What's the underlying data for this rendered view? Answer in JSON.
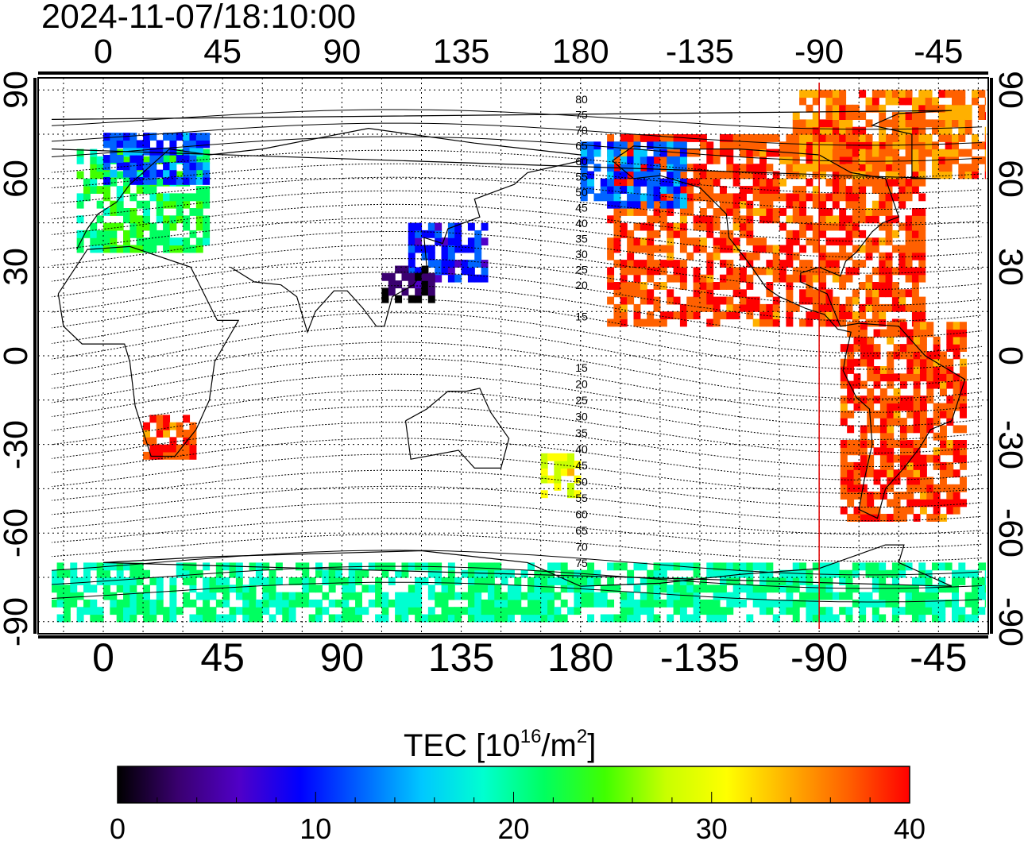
{
  "title": "2024-11-07/18:10:00",
  "map": {
    "projection": "equirectangular",
    "lon_ticks_top": [
      "0",
      "45",
      "90",
      "135",
      "180",
      "-135",
      "-90",
      "-45"
    ],
    "lon_ticks_bottom": [
      "0",
      "45",
      "90",
      "135",
      "180",
      "-135",
      "-90",
      "-45"
    ],
    "lat_ticks_left": [
      "90",
      "60",
      "30",
      "0",
      "-30",
      "-60",
      "-90"
    ],
    "lat_ticks_right": [
      "90",
      "60",
      "30",
      "0",
      "-30",
      "-60",
      "-90"
    ],
    "grid": "dotted",
    "contour_labels_north": [
      "80",
      "75",
      "70",
      "65",
      "60",
      "55",
      "50",
      "45",
      "40",
      "35",
      "30",
      "25",
      "20",
      "15"
    ],
    "contour_labels_south": [
      "15",
      "20",
      "25",
      "30",
      "35",
      "40",
      "45",
      "50",
      "55",
      "60",
      "65",
      "70",
      "75"
    ],
    "marker_line_lon": "-90",
    "marker_line_color": "#e00000"
  },
  "colorbar": {
    "label": "TEC  [10",
    "label_sup": "16",
    "label_mid": "/m",
    "label_sup2": "2",
    "label_end": "]",
    "ticks": [
      "0",
      "10",
      "20",
      "30",
      "40"
    ],
    "min": 0,
    "max": 40,
    "colors": [
      "#000000",
      "#3a0070",
      "#5000c8",
      "#0000ff",
      "#0064ff",
      "#00c8ff",
      "#00ffd0",
      "#00ff60",
      "#40ff00",
      "#c8ff00",
      "#ffff00",
      "#ffb000",
      "#ff6000",
      "#ff0000"
    ]
  },
  "tec_regions": [
    {
      "name": "north-america",
      "lon_range": [
        -170,
        -50
      ],
      "lat_range": [
        10,
        75
      ],
      "tec": 38
    },
    {
      "name": "south-america",
      "lon_range": [
        -82,
        -35
      ],
      "lat_range": [
        -56,
        10
      ],
      "tec": 38
    },
    {
      "name": "greenland-arctic",
      "lon_range": [
        -100,
        -20
      ],
      "lat_range": [
        60,
        88
      ],
      "tec": 36
    },
    {
      "name": "europe",
      "lon_range": [
        -10,
        40
      ],
      "lat_range": [
        35,
        70
      ],
      "tec": 22
    },
    {
      "name": "scandinavia",
      "lon_range": [
        0,
        40
      ],
      "lat_range": [
        58,
        75
      ],
      "tec": 12
    },
    {
      "name": "east-asia-north",
      "lon_range": [
        115,
        145
      ],
      "lat_range": [
        25,
        45
      ],
      "tec": 10
    },
    {
      "name": "south-china",
      "lon_range": [
        105,
        125
      ],
      "lat_range": [
        18,
        30
      ],
      "tec": 2
    },
    {
      "name": "southern-africa",
      "lon_range": [
        15,
        35
      ],
      "lat_range": [
        -35,
        -20
      ],
      "tec": 38
    },
    {
      "name": "new-zealand",
      "lon_range": [
        165,
        180
      ],
      "lat_range": [
        -48,
        -34
      ],
      "tec": 30
    },
    {
      "name": "antarctic-band",
      "lon_range": [
        -180,
        180
      ],
      "lat_range": [
        -90,
        -70
      ],
      "tec": 20
    },
    {
      "name": "alaska-pacific",
      "lon_range": [
        180,
        220
      ],
      "lat_range": [
        50,
        72
      ],
      "tec": 12
    }
  ]
}
